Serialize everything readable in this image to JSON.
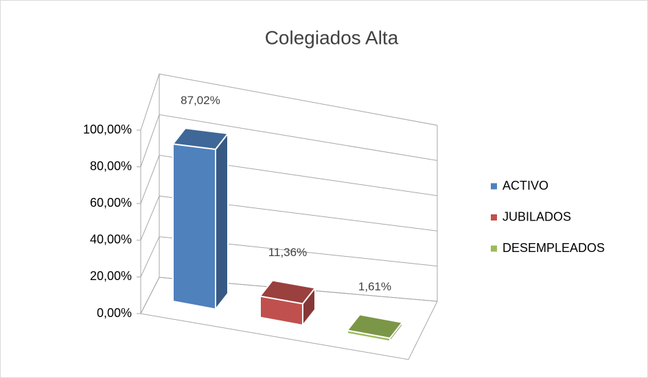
{
  "chart_data": {
    "type": "bar3d",
    "title": "Colegiados Alta",
    "categories": [
      "ACTIVO",
      "JUBILADOS",
      "DESEMPLEADOS"
    ],
    "values": [
      87.02,
      11.36,
      1.61
    ],
    "value_labels": [
      "87,02%",
      "11,36%",
      "1,61%"
    ],
    "colors": [
      "#4f81bd",
      "#c0504d",
      "#9bbb59"
    ],
    "ylim": [
      0,
      100
    ],
    "yticks": [
      {
        "value": 0,
        "label": "0,00%"
      },
      {
        "value": 20,
        "label": "20,00%"
      },
      {
        "value": 40,
        "label": "40,00%"
      },
      {
        "value": 60,
        "label": "60,00%"
      },
      {
        "value": 80,
        "label": "80,00%"
      },
      {
        "value": 100,
        "label": "100,00%"
      }
    ],
    "grid": true,
    "legend": "right"
  }
}
